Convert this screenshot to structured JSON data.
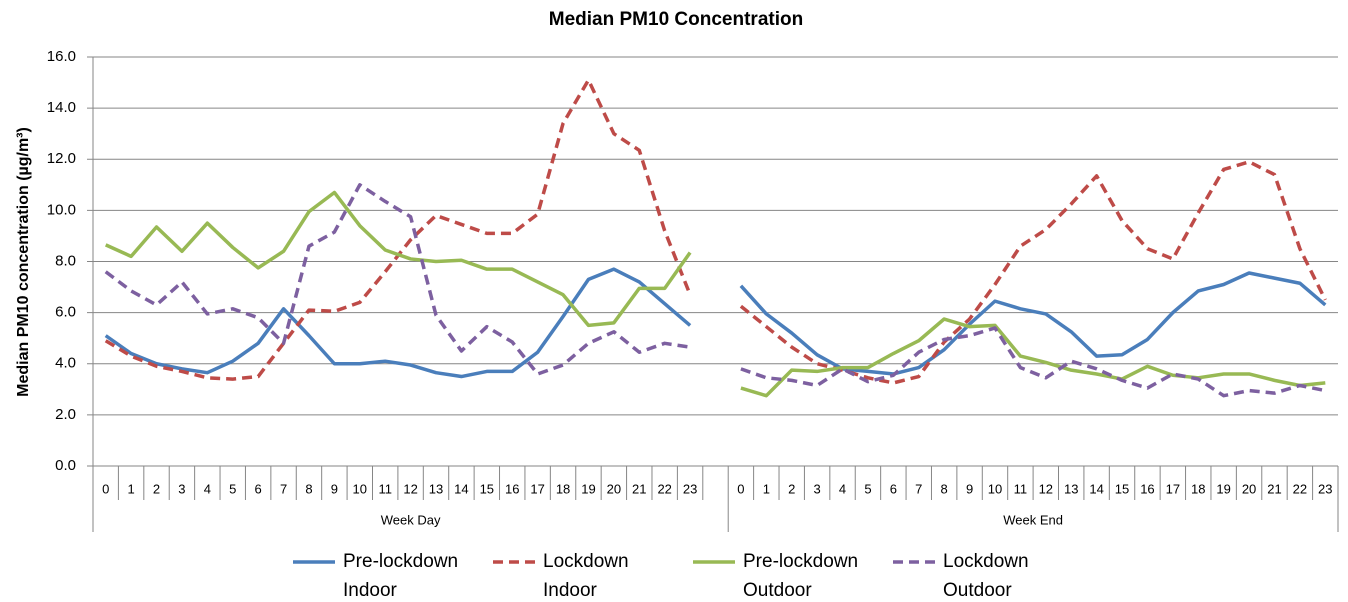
{
  "chart_data": {
    "type": "line",
    "title": "Median PM10 Concentration",
    "y_label": "Median PM10 concentration (µg/m³)",
    "categories": [
      "0",
      "1",
      "2",
      "3",
      "4",
      "5",
      "6",
      "7",
      "8",
      "9",
      "10",
      "11",
      "12",
      "13",
      "14",
      "15",
      "16",
      "17",
      "18",
      "19",
      "20",
      "21",
      "22",
      "23",
      null,
      "0",
      "1",
      "2",
      "3",
      "4",
      "5",
      "6",
      "7",
      "8",
      "9",
      "10",
      "11",
      "12",
      "13",
      "14",
      "15",
      "16",
      "17",
      "18",
      "19",
      "20",
      "21",
      "22",
      "23"
    ],
    "group_labels": [
      "Week Day",
      "Week End"
    ],
    "ylim": [
      0,
      16
    ],
    "yticks": [
      {
        "value": 0,
        "label": "0.0"
      },
      {
        "value": 2,
        "label": "2.0"
      },
      {
        "value": 4,
        "label": "4.0"
      },
      {
        "value": 6,
        "label": "6.0"
      },
      {
        "value": 8,
        "label": "8.0"
      },
      {
        "value": 10,
        "label": "10.0"
      },
      {
        "value": 12,
        "label": "12.0"
      },
      {
        "value": 14,
        "label": "14.0"
      },
      {
        "value": 16,
        "label": "16.0"
      }
    ],
    "grid": true,
    "legend": "bottom",
    "series": [
      {
        "name": "Pre-lockdown Indoor",
        "color": "#4a7ebb",
        "dashed": false,
        "values": [
          5.1,
          4.4,
          4.0,
          3.8,
          3.65,
          4.1,
          4.8,
          6.15,
          5.1,
          4.0,
          4.0,
          4.1,
          3.95,
          3.65,
          3.5,
          3.7,
          3.7,
          4.45,
          5.85,
          7.3,
          7.7,
          7.2,
          6.35,
          5.5,
          null,
          7.05,
          5.95,
          5.2,
          4.35,
          3.8,
          3.7,
          3.6,
          3.85,
          4.55,
          5.55,
          6.45,
          6.15,
          5.95,
          5.25,
          4.3,
          4.35,
          4.95,
          6.0,
          6.85,
          7.1,
          7.55,
          7.35,
          7.15,
          6.3
        ]
      },
      {
        "name": "Lockdown Indoor",
        "color": "#be4b48",
        "dashed": true,
        "values": [
          4.9,
          4.3,
          3.9,
          3.7,
          3.45,
          3.4,
          3.5,
          4.8,
          6.1,
          6.05,
          6.4,
          7.6,
          8.85,
          9.8,
          9.45,
          9.1,
          9.1,
          9.85,
          13.4,
          15.1,
          13.0,
          12.35,
          9.2,
          6.7,
          null,
          6.25,
          5.45,
          4.65,
          4.0,
          3.75,
          3.45,
          3.25,
          3.5,
          4.85,
          5.75,
          7.1,
          8.6,
          9.25,
          10.25,
          11.35,
          9.6,
          8.5,
          8.1,
          9.9,
          11.6,
          11.9,
          11.4,
          8.5,
          6.5
        ]
      },
      {
        "name": "Pre-lockdown Outdoor",
        "color": "#98b954",
        "dashed": false,
        "values": [
          8.65,
          8.2,
          9.35,
          8.4,
          9.5,
          8.55,
          7.75,
          8.4,
          9.95,
          10.7,
          9.4,
          8.45,
          8.1,
          8.0,
          8.05,
          7.7,
          7.7,
          7.2,
          6.7,
          5.5,
          5.6,
          6.95,
          6.95,
          8.35,
          null,
          3.05,
          2.75,
          3.75,
          3.7,
          3.85,
          3.85,
          4.4,
          4.9,
          5.75,
          5.45,
          5.5,
          4.3,
          4.05,
          3.75,
          3.6,
          3.4,
          3.9,
          3.55,
          3.45,
          3.6,
          3.6,
          3.35,
          3.15,
          3.25
        ]
      },
      {
        "name": "Lockdown Outdoor",
        "color": "#7d60a0",
        "dashed": true,
        "values": [
          7.6,
          6.85,
          6.3,
          7.2,
          5.95,
          6.15,
          5.8,
          4.8,
          8.6,
          9.15,
          11.0,
          10.35,
          9.75,
          5.9,
          4.5,
          5.45,
          4.85,
          3.6,
          3.95,
          4.8,
          5.25,
          4.45,
          4.8,
          4.65,
          null,
          3.8,
          3.45,
          3.35,
          3.15,
          3.8,
          3.3,
          3.55,
          4.45,
          4.95,
          5.1,
          5.4,
          3.85,
          3.45,
          4.1,
          3.8,
          3.35,
          3.05,
          3.6,
          3.4,
          2.75,
          2.95,
          2.85,
          3.15,
          2.95
        ]
      }
    ]
  }
}
